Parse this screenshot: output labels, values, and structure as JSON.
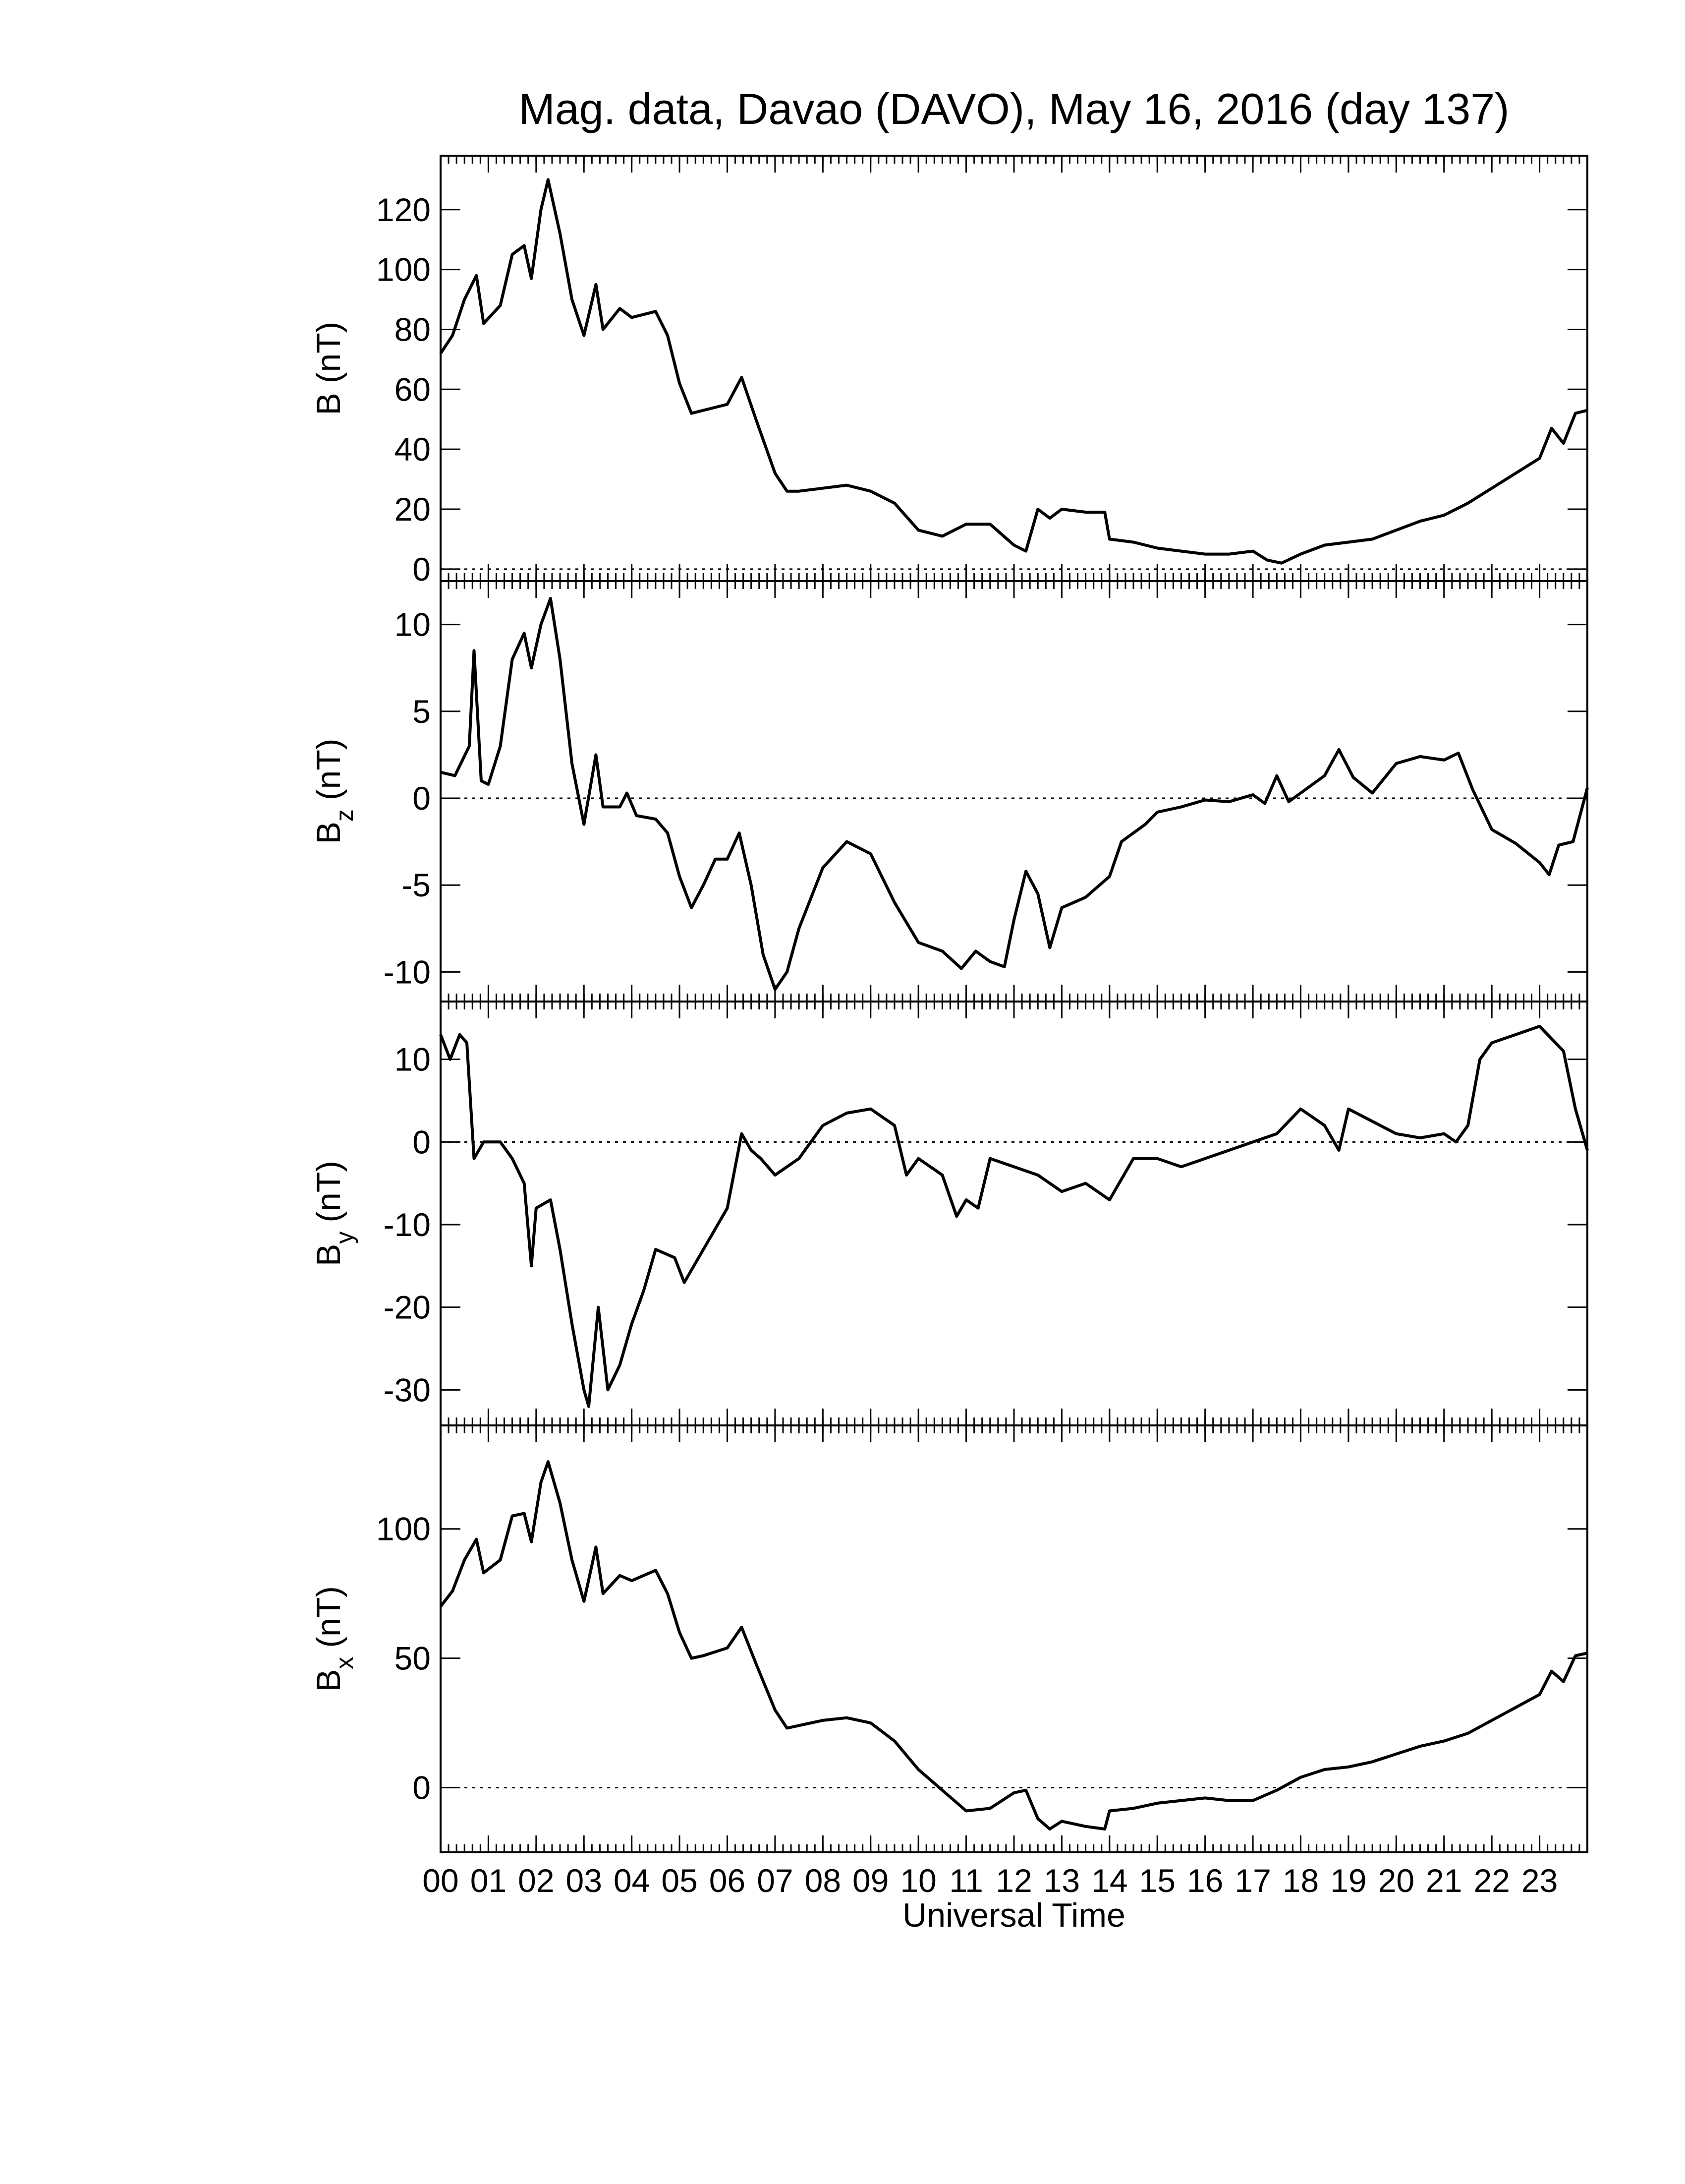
{
  "chart_data": [
    {
      "type": "line",
      "title": "Mag. data, Davao (DAVO), May 16, 2016 (day 137)",
      "ylabel": "B (nT)",
      "color": "#000000",
      "zero_line": true,
      "ylim": [
        -4,
        138
      ],
      "yticks": [
        0,
        20,
        40,
        60,
        80,
        100,
        120
      ],
      "xlim": [
        0,
        24
      ],
      "x": [
        0,
        0.25,
        0.5,
        0.75,
        0.9,
        1.25,
        1.5,
        1.75,
        1.9,
        2.1,
        2.25,
        2.5,
        2.75,
        3,
        3.25,
        3.4,
        3.75,
        4,
        4.5,
        4.75,
        5,
        5.25,
        5.5,
        6,
        6.3,
        6.6,
        7,
        7.25,
        7.5,
        8,
        8.5,
        9,
        9.5,
        10,
        10.5,
        11,
        11.5,
        12,
        12.25,
        12.5,
        12.75,
        13,
        13.5,
        13.9,
        14,
        14.5,
        15,
        15.5,
        16,
        16.5,
        17,
        17.3,
        17.6,
        18,
        18.5,
        19,
        19.5,
        20,
        20.5,
        21,
        21.5,
        22,
        22.5,
        23,
        23.25,
        23.5,
        23.75,
        24
      ],
      "values": [
        72,
        78,
        90,
        98,
        82,
        88,
        105,
        108,
        97,
        120,
        130,
        112,
        90,
        78,
        95,
        80,
        87,
        84,
        86,
        78,
        62,
        52,
        53,
        55,
        64,
        50,
        32,
        26,
        26,
        27,
        28,
        26,
        22,
        13,
        11,
        15,
        15,
        8,
        6,
        20,
        17,
        20,
        19,
        19,
        10,
        9,
        7,
        6,
        5,
        5,
        6,
        3,
        2,
        5,
        8,
        9,
        10,
        13,
        16,
        18,
        22,
        27,
        32,
        37,
        47,
        42,
        52,
        53
      ]
    },
    {
      "type": "line",
      "ylabel": "B",
      "ylabel_sub": "z",
      "ylabel_unit": "(nT)",
      "color": "#000000",
      "zero_line": true,
      "ylim": [
        -11.7,
        12.5
      ],
      "yticks": [
        -10,
        -5,
        0,
        5,
        10
      ],
      "xlim": [
        0,
        24
      ],
      "x": [
        0,
        0.3,
        0.6,
        0.7,
        0.85,
        1,
        1.25,
        1.5,
        1.75,
        1.9,
        2.1,
        2.3,
        2.5,
        2.75,
        3,
        3.25,
        3.4,
        3.75,
        3.9,
        4.1,
        4.5,
        4.75,
        5,
        5.25,
        5.5,
        5.75,
        6,
        6.25,
        6.5,
        6.75,
        7,
        7.25,
        7.5,
        8,
        8.5,
        9,
        9.5,
        10,
        10.5,
        10.9,
        11.2,
        11.5,
        11.8,
        12,
        12.25,
        12.5,
        12.75,
        13,
        13.5,
        14,
        14.25,
        14.75,
        15,
        15.5,
        16,
        16.5,
        17,
        17.25,
        17.5,
        17.75,
        18,
        18.5,
        18.8,
        19.1,
        19.5,
        20,
        20.5,
        21,
        21.3,
        21.6,
        22,
        22.5,
        23,
        23.2,
        23.4,
        23.7,
        24
      ],
      "values": [
        1.5,
        1.3,
        3,
        8.5,
        1,
        0.8,
        3,
        8,
        9.5,
        7.5,
        10,
        11.5,
        8,
        2,
        -1.5,
        2.5,
        -0.5,
        -0.5,
        0.3,
        -1,
        -1.2,
        -2,
        -4.5,
        -6.3,
        -5,
        -3.5,
        -3.5,
        -2,
        -5,
        -9,
        -11,
        -10,
        -7.5,
        -4,
        -2.5,
        -3.2,
        -6,
        -8.3,
        -8.8,
        -9.8,
        -8.8,
        -9.4,
        -9.7,
        -7,
        -4.2,
        -5.5,
        -8.6,
        -6.3,
        -5.7,
        -4.5,
        -2.5,
        -1.5,
        -0.8,
        -0.5,
        -0.1,
        -0.2,
        0.2,
        -0.3,
        1.3,
        -0.2,
        0.3,
        1.3,
        2.8,
        1.2,
        0.3,
        2,
        2.4,
        2.2,
        2.6,
        0.5,
        -1.8,
        -2.6,
        -3.7,
        -4.4,
        -2.7,
        -2.5,
        0.6
      ]
    },
    {
      "type": "line",
      "ylabel": "B",
      "ylabel_sub": "y",
      "ylabel_unit": "(nT)",
      "color": "#000000",
      "zero_line": true,
      "ylim": [
        -34.3,
        17
      ],
      "yticks": [
        -30,
        -20,
        -10,
        0,
        10
      ],
      "xlim": [
        0,
        24
      ],
      "x": [
        0,
        0.2,
        0.4,
        0.55,
        0.7,
        0.9,
        1.25,
        1.5,
        1.75,
        1.9,
        2,
        2.3,
        2.5,
        2.75,
        3,
        3.1,
        3.3,
        3.5,
        3.75,
        4,
        4.25,
        4.5,
        4.9,
        5.1,
        5.5,
        6,
        6.3,
        6.5,
        6.7,
        7,
        7.5,
        8,
        8.5,
        9,
        9.5,
        9.75,
        10,
        10.5,
        10.8,
        11,
        11.25,
        11.5,
        12,
        12.5,
        13,
        13.5,
        14,
        14.5,
        15,
        15.5,
        16,
        16.5,
        17,
        17.5,
        18,
        18.5,
        18.8,
        19,
        19.5,
        20,
        20.5,
        21,
        21.25,
        21.5,
        21.75,
        22,
        22.5,
        23,
        23.5,
        23.75,
        24
      ],
      "values": [
        13,
        10,
        13,
        12,
        -2,
        0,
        0,
        -2,
        -5,
        -15,
        -8,
        -7,
        -13,
        -22,
        -30,
        -32,
        -20,
        -30,
        -27,
        -22,
        -18,
        -13,
        -14,
        -17,
        -13,
        -8,
        1,
        -1,
        -2,
        -4,
        -2,
        2,
        3.5,
        4,
        2,
        -4,
        -2,
        -4,
        -9,
        -7,
        -8,
        -2,
        -3,
        -4,
        -6,
        -5,
        -7,
        -2,
        -2,
        -3,
        -2,
        -1,
        0,
        1,
        4,
        2,
        -1,
        4,
        2.5,
        1,
        0.5,
        1,
        0,
        2,
        10,
        12,
        13,
        14,
        11,
        4,
        -1
      ]
    },
    {
      "type": "line",
      "ylabel": "B",
      "ylabel_sub": "x",
      "ylabel_unit": "(nT)",
      "xlabel": "Universal Time",
      "color": "#000000",
      "zero_line": true,
      "ylim": [
        -25,
        140
      ],
      "yticks": [
        0,
        50,
        100
      ],
      "xlim": [
        0,
        24
      ],
      "xticks": [
        {
          "value": 0,
          "label": "00"
        },
        {
          "value": 1,
          "label": "01"
        },
        {
          "value": 2,
          "label": "02"
        },
        {
          "value": 3,
          "label": "03"
        },
        {
          "value": 4,
          "label": "04"
        },
        {
          "value": 5,
          "label": "05"
        },
        {
          "value": 6,
          "label": "06"
        },
        {
          "value": 7,
          "label": "07"
        },
        {
          "value": 8,
          "label": "08"
        },
        {
          "value": 9,
          "label": "09"
        },
        10,
        11,
        12,
        13,
        14,
        15,
        16,
        17,
        18,
        19,
        20,
        21,
        22,
        23
      ],
      "x": [
        0,
        0.25,
        0.5,
        0.75,
        0.9,
        1.25,
        1.5,
        1.75,
        1.9,
        2.1,
        2.25,
        2.5,
        2.75,
        3,
        3.25,
        3.4,
        3.75,
        4,
        4.5,
        4.75,
        5,
        5.25,
        5.5,
        6,
        6.3,
        6.6,
        7,
        7.25,
        7.5,
        8,
        8.5,
        9,
        9.5,
        10,
        10.5,
        11,
        11.5,
        12,
        12.25,
        12.5,
        12.75,
        13,
        13.5,
        13.9,
        14,
        14.5,
        15,
        15.5,
        16,
        16.5,
        17,
        17.5,
        18,
        18.5,
        19,
        19.5,
        20,
        20.5,
        21,
        21.5,
        22,
        22.5,
        23,
        23.25,
        23.5,
        23.75,
        24
      ],
      "values": [
        70,
        76,
        88,
        96,
        83,
        88,
        105,
        106,
        95,
        118,
        126,
        110,
        88,
        72,
        93,
        75,
        82,
        80,
        84,
        75,
        60,
        50,
        51,
        54,
        62,
        48,
        30,
        23,
        24,
        26,
        27,
        25,
        18,
        7,
        -1,
        -9,
        -8,
        -2,
        -1,
        -12,
        -16,
        -13,
        -15,
        -16,
        -9,
        -8,
        -6,
        -5,
        -4,
        -5,
        -5,
        -1,
        4,
        7,
        8,
        10,
        13,
        16,
        18,
        21,
        26,
        31,
        36,
        45,
        41,
        51,
        52
      ]
    }
  ]
}
